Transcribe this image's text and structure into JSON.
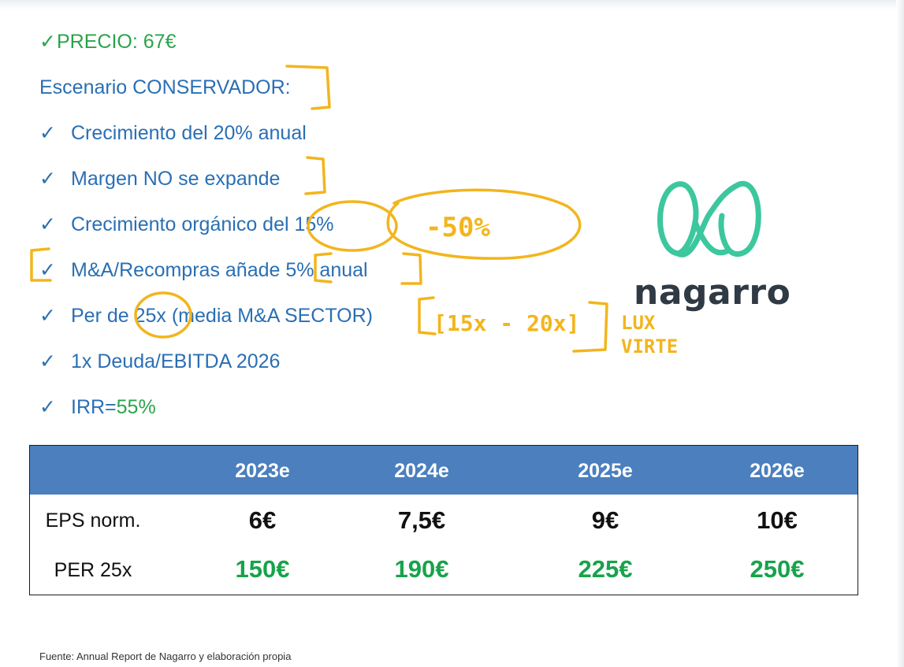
{
  "header": {
    "price_check": "✓",
    "price": "PRECIO: 67€",
    "scenario": "Escenario CONSERVADOR:"
  },
  "bullets": [
    {
      "check": "✓",
      "text": "Crecimiento del 20% anual"
    },
    {
      "check": "✓",
      "text": "Margen NO se expande"
    },
    {
      "check": "✓",
      "text": "Crecimiento orgánico del 15%"
    },
    {
      "check": "✓",
      "text": "M&A/Recompras añade 5% anual"
    },
    {
      "check": "✓",
      "text": "Per de 25x (media M&A SECTOR)"
    },
    {
      "check": "✓",
      "text": "1x Deuda/EBITDA 2026"
    },
    {
      "check": "✓",
      "text_prefix": "IRR=",
      "text_value": "55%"
    }
  ],
  "logo": {
    "icon": "nagarro-infinity-icon",
    "name": "nagarro",
    "color": "#3cc79e"
  },
  "table": {
    "header_color": "#4b7fbe",
    "columns": [
      "",
      "2023e",
      "2024e",
      "2025e",
      "2026e"
    ],
    "rows": [
      {
        "label": "EPS norm.",
        "values": [
          "6€",
          "7,5€",
          "9€",
          "10€"
        ]
      },
      {
        "label": "PER 25x",
        "values": [
          "150€",
          "190€",
          "225€",
          "250€"
        ]
      }
    ]
  },
  "annotations": {
    "ink_color": "#f2b51d",
    "minus_note": "-50%",
    "range_note": "[15x - 20x]",
    "extra_note_1": "LUX",
    "extra_note_2": "VIRTE"
  },
  "footer": {
    "source": "Fuente: Annual Report de Nagarro y elaboración propia"
  }
}
